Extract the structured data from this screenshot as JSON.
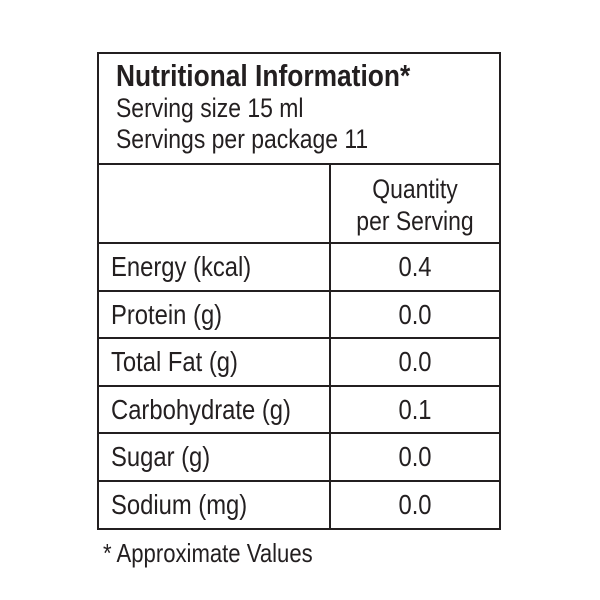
{
  "label": {
    "title": "Nutritional Information*",
    "serving_size": "Serving size 15 ml",
    "servings_per_package": "Servings per package 11",
    "column_header": {
      "line1": "Quantity",
      "line2": "per Serving"
    },
    "rows": [
      {
        "nutrient": "Energy (kcal)",
        "value": "0.4"
      },
      {
        "nutrient": "Protein (g)",
        "value": "0.0"
      },
      {
        "nutrient": "Total Fat (g)",
        "value": "0.0"
      },
      {
        "nutrient": "Carbohydrate (g)",
        "value": "0.1"
      },
      {
        "nutrient": "Sugar (g)",
        "value": "0.0"
      },
      {
        "nutrient": "Sodium (mg)",
        "value": "0.0"
      }
    ],
    "footnote": "* Approximate Values"
  }
}
